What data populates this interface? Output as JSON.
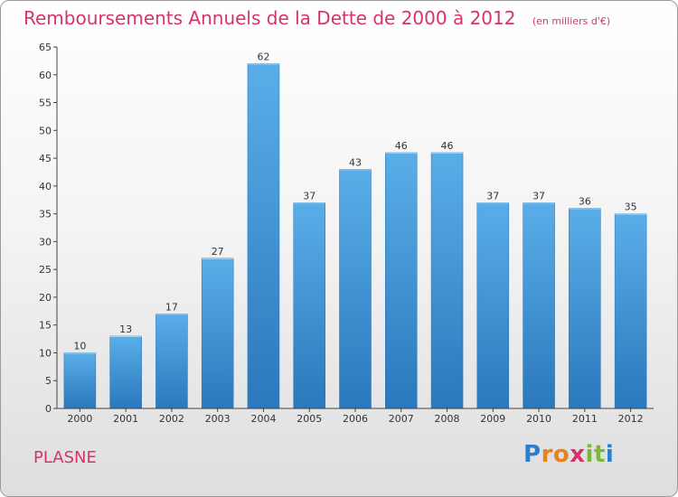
{
  "chart_data": {
    "type": "bar",
    "title": "Remboursements Annuels de la Dette de 2000 à 2012",
    "subtitle": "(en milliers d'€)",
    "categories": [
      "2000",
      "2001",
      "2002",
      "2003",
      "2004",
      "2005",
      "2006",
      "2007",
      "2008",
      "2009",
      "2010",
      "2011",
      "2012"
    ],
    "values": [
      10,
      13,
      17,
      27,
      62,
      37,
      43,
      46,
      46,
      37,
      37,
      36,
      35
    ],
    "yticks": [
      0,
      5,
      10,
      15,
      20,
      25,
      30,
      35,
      40,
      45,
      50,
      55,
      60,
      65
    ],
    "ylim": [
      0,
      65
    ],
    "grid": false,
    "bar_color": "#3d8fd6"
  },
  "commune": "PLASNE",
  "logo": {
    "letters": [
      "P",
      "r",
      "o",
      "x",
      "i",
      "t",
      "i"
    ],
    "colors": [
      "#2b7fcf",
      "#e8821e",
      "#e8821e",
      "#d6336c",
      "#7bb933",
      "#7bb933",
      "#2b7fcf"
    ]
  }
}
